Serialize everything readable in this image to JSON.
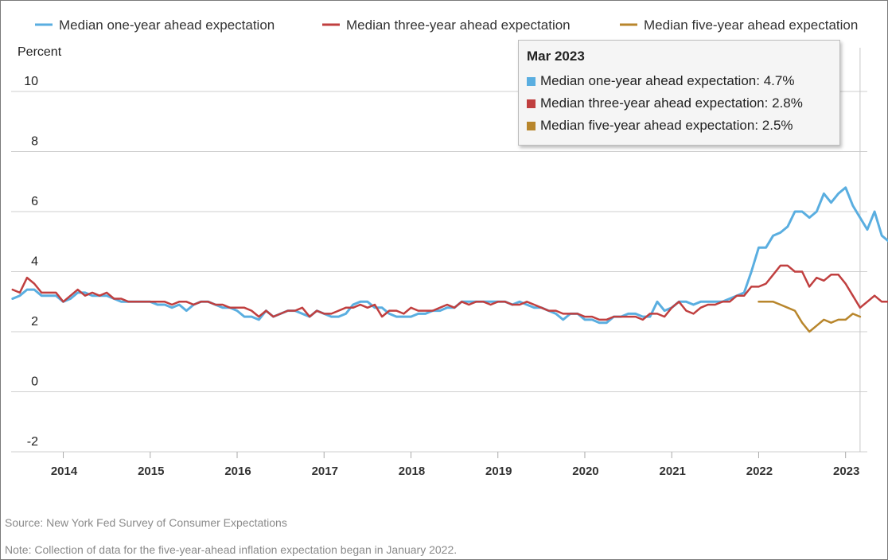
{
  "chart_data": {
    "type": "line",
    "ylabel": "Percent",
    "ylim": [
      -2,
      10
    ],
    "yticks": [
      -2,
      0,
      2,
      4,
      6,
      8,
      10
    ],
    "xlim": [
      2013.4,
      2023.25
    ],
    "xticks": [
      {
        "x": 2014.0,
        "label": "2014"
      },
      {
        "x": 2015.0,
        "label": "2015"
      },
      {
        "x": 2016.0,
        "label": "2016"
      },
      {
        "x": 2017.0,
        "label": "2017"
      },
      {
        "x": 2018.0,
        "label": "2018"
      },
      {
        "x": 2019.0,
        "label": "2019"
      },
      {
        "x": 2020.0,
        "label": "2020"
      },
      {
        "x": 2021.0,
        "label": "2021"
      },
      {
        "x": 2022.0,
        "label": "2022"
      },
      {
        "x": 2023.0,
        "label": "2023"
      }
    ],
    "grid": true,
    "legend_position": "top",
    "series": [
      {
        "name": "Median one-year ahead expectation",
        "color": "#5aaee0",
        "start": "2013-06",
        "values": [
          3.1,
          3.2,
          3.4,
          3.4,
          3.2,
          3.2,
          3.2,
          3.0,
          3.1,
          3.3,
          3.3,
          3.2,
          3.2,
          3.2,
          3.1,
          3.0,
          3.0,
          3.0,
          3.0,
          3.0,
          2.9,
          2.9,
          2.8,
          2.9,
          2.7,
          2.9,
          3.0,
          3.0,
          2.9,
          2.8,
          2.8,
          2.7,
          2.5,
          2.5,
          2.4,
          2.7,
          2.5,
          2.6,
          2.7,
          2.7,
          2.6,
          2.5,
          2.7,
          2.6,
          2.5,
          2.5,
          2.6,
          2.9,
          3.0,
          3.0,
          2.8,
          2.8,
          2.6,
          2.5,
          2.5,
          2.5,
          2.6,
          2.6,
          2.7,
          2.7,
          2.8,
          2.8,
          3.0,
          3.0,
          3.0,
          3.0,
          3.0,
          3.0,
          3.0,
          2.9,
          3.0,
          2.9,
          2.8,
          2.8,
          2.7,
          2.6,
          2.4,
          2.6,
          2.6,
          2.4,
          2.4,
          2.3,
          2.3,
          2.5,
          2.5,
          2.6,
          2.6,
          2.5,
          2.5,
          3.0,
          2.7,
          2.8,
          3.0,
          3.0,
          2.9,
          3.0,
          3.0,
          3.0,
          3.0,
          3.1,
          3.2,
          3.3,
          4.0,
          4.8,
          4.8,
          5.2,
          5.3,
          5.5,
          6.0,
          6.0,
          5.8,
          6.0,
          6.6,
          6.3,
          6.6,
          6.8,
          6.2,
          5.8,
          5.4,
          6.0,
          5.2,
          5.0,
          5.0,
          4.2,
          4.7
        ]
      },
      {
        "name": "Median three-year ahead expectation",
        "color": "#c03f3f",
        "start": "2013-06",
        "values": [
          3.4,
          3.3,
          3.8,
          3.6,
          3.3,
          3.3,
          3.3,
          3.0,
          3.2,
          3.4,
          3.2,
          3.3,
          3.2,
          3.3,
          3.1,
          3.1,
          3.0,
          3.0,
          3.0,
          3.0,
          3.0,
          3.0,
          2.9,
          3.0,
          3.0,
          2.9,
          3.0,
          3.0,
          2.9,
          2.9,
          2.8,
          2.8,
          2.8,
          2.7,
          2.5,
          2.7,
          2.5,
          2.6,
          2.7,
          2.7,
          2.8,
          2.5,
          2.7,
          2.6,
          2.6,
          2.7,
          2.8,
          2.8,
          2.9,
          2.8,
          2.9,
          2.5,
          2.7,
          2.7,
          2.6,
          2.8,
          2.7,
          2.7,
          2.7,
          2.8,
          2.9,
          2.8,
          3.0,
          2.9,
          3.0,
          3.0,
          2.9,
          3.0,
          3.0,
          2.9,
          2.9,
          3.0,
          2.9,
          2.8,
          2.7,
          2.7,
          2.6,
          2.6,
          2.6,
          2.5,
          2.5,
          2.4,
          2.4,
          2.5,
          2.5,
          2.5,
          2.5,
          2.4,
          2.6,
          2.6,
          2.5,
          2.8,
          3.0,
          2.7,
          2.6,
          2.8,
          2.9,
          2.9,
          3.0,
          3.0,
          3.2,
          3.2,
          3.5,
          3.5,
          3.6,
          3.9,
          4.2,
          4.2,
          4.0,
          4.0,
          3.5,
          3.8,
          3.7,
          3.9,
          3.9,
          3.6,
          3.2,
          2.8,
          3.0,
          3.2,
          3.0,
          3.0,
          2.7,
          2.6,
          2.8
        ]
      },
      {
        "name": "Median five-year ahead expectation",
        "color": "#b8862c",
        "start": "2022-01",
        "values": [
          3.0,
          3.0,
          3.0,
          2.9,
          2.8,
          2.7,
          2.3,
          2.0,
          2.2,
          2.4,
          2.3,
          2.4,
          2.4,
          2.6,
          2.5
        ]
      }
    ]
  },
  "tooltip": {
    "title": "Mar 2023",
    "rows": [
      {
        "text": "Median one-year ahead expectation: 4.7%",
        "color": "#5aaee0"
      },
      {
        "text": "Median three-year ahead expectation: 2.8%",
        "color": "#c03f3f"
      },
      {
        "text": "Median five-year ahead expectation: 2.5%",
        "color": "#b8862c"
      }
    ]
  },
  "footnotes": {
    "source": "Source: New York Fed Survey of Consumer Expectations",
    "note": "Note: Collection of data for the five-year-ahead inflation expectation began in January 2022."
  }
}
